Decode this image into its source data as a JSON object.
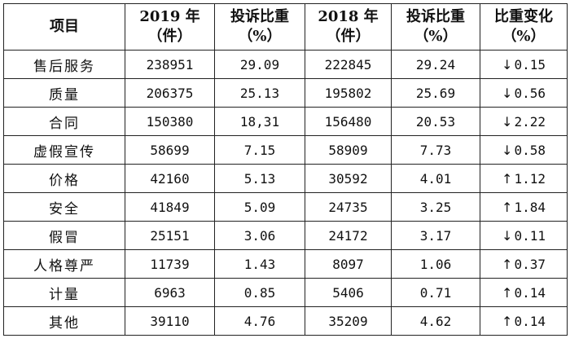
{
  "header": {
    "item": "项目",
    "count_2019": [
      "2019 年",
      "（件）"
    ],
    "share_2019": [
      "投诉比重",
      "（%）"
    ],
    "count_2018": [
      "2018 年",
      "（件）"
    ],
    "share_2018": [
      "投诉比重",
      "（%）"
    ],
    "change": [
      "比重变化",
      "（%）"
    ]
  },
  "rows": [
    {
      "item": "售后服务",
      "count_2019": "238951",
      "share_2019": "29.09",
      "count_2018": "222845",
      "share_2018": "29.24",
      "direction": "down",
      "arrow": "↓",
      "change": "0.15"
    },
    {
      "item": "质量",
      "count_2019": "206375",
      "share_2019": "25.13",
      "count_2018": "195802",
      "share_2018": "25.69",
      "direction": "down",
      "arrow": "↓",
      "change": "0.56"
    },
    {
      "item": "合同",
      "count_2019": "150380",
      "share_2019": "18,31",
      "count_2018": "156480",
      "share_2018": "20.53",
      "direction": "down",
      "arrow": "↓",
      "change": "2.22"
    },
    {
      "item": "虚假宣传",
      "count_2019": "58699",
      "share_2019": "7.15",
      "count_2018": "58909",
      "share_2018": "7.73",
      "direction": "down",
      "arrow": "↓",
      "change": "0.58"
    },
    {
      "item": "价格",
      "count_2019": "42160",
      "share_2019": "5.13",
      "count_2018": "30592",
      "share_2018": "4.01",
      "direction": "up",
      "arrow": "↑",
      "change": "1.12"
    },
    {
      "item": "安全",
      "count_2019": "41849",
      "share_2019": "5.09",
      "count_2018": "24735",
      "share_2018": "3.25",
      "direction": "up",
      "arrow": "↑",
      "change": "1.84"
    },
    {
      "item": "假冒",
      "count_2019": "25151",
      "share_2019": "3.06",
      "count_2018": "24172",
      "share_2018": "3.17",
      "direction": "down",
      "arrow": "↓",
      "change": "0.11"
    },
    {
      "item": "人格尊严",
      "count_2019": "11739",
      "share_2019": "1.43",
      "count_2018": "8097",
      "share_2018": "1.06",
      "direction": "up",
      "arrow": "↑",
      "change": "0.37"
    },
    {
      "item": "计量",
      "count_2019": "6963",
      "share_2019": "0.85",
      "count_2018": "5406",
      "share_2018": "0.71",
      "direction": "up",
      "arrow": "↑",
      "change": "0.14"
    },
    {
      "item": "其他",
      "count_2019": "39110",
      "share_2019": "4.76",
      "count_2018": "35209",
      "share_2018": "4.62",
      "direction": "up",
      "arrow": "↑",
      "change": "0.14"
    }
  ]
}
